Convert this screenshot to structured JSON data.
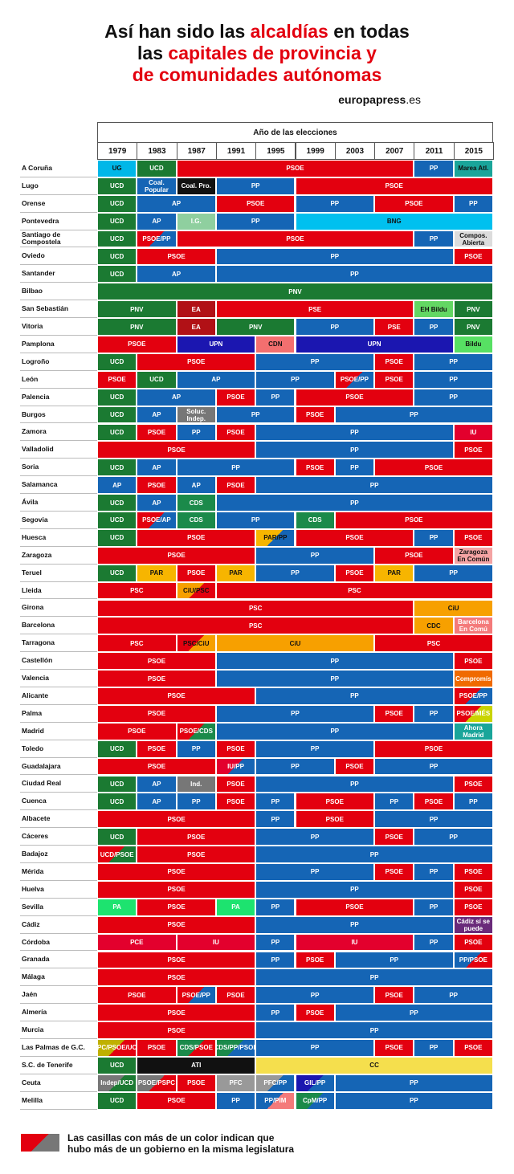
{
  "title": {
    "line1_a": "Así han sido las ",
    "line1_b": "alcaldías",
    "line1_c": " en todas",
    "line2_a": "las ",
    "line2_b": "capitales de provincia y",
    "line3": "de comunidades autónomas"
  },
  "brand": {
    "bold": "europapress",
    "thin": ".es"
  },
  "header": {
    "label": "Año de las elecciones",
    "years": [
      "1979",
      "1983",
      "1987",
      "1991",
      "1995",
      "1999",
      "2003",
      "2007",
      "2011",
      "2015"
    ]
  },
  "legend": {
    "line1": "Las casillas con más de un color indican que",
    "line2": "hubo más de un gobierno en la misma legislatura"
  },
  "colors": {
    "UCD": "#1b7a32",
    "PSOE": "#e3000f",
    "PP": "#1565b5",
    "UG": "#00b7e8",
    "Marea Atl.": "#1aa59a",
    "Coal. Popular": "#1565b5",
    "Coal. Pro.": "#111111",
    "AP": "#1565b5",
    "I.G.": "#8fcf9f",
    "BNG": "#00c0ef",
    "PSOE/PP": "#e3000f",
    "Compos. Abierta": "#dcdcdc",
    "PNV": "#1b7a32",
    "EA": "#b11116",
    "PSE": "#e3000f",
    "EH Bildu": "#63d763",
    "Bildu": "#57e063",
    "UPN": "#1b16b0",
    "CDN": "#f36f6f",
    "Soluc. Indep.": "#777777",
    "IU": "#e3002d",
    "PSOE/AP": "#e3000f",
    "CDS": "#1b8a4a",
    "PAR/PP": "#f7b500",
    "PAR": "#f7b500",
    "Zaragoza En Común": "#f4a3a3",
    "PSC": "#e3000f",
    "CiU/PSC": "#f7a000",
    "CiU": "#f7a000",
    "CDC": "#f7a000",
    "Barcelona En Comú": "#f47a7a",
    "PSC/CiU": "#e3000f",
    "Compromís": "#f06a00",
    "PSOE/MÉS": "#e3000f",
    "PSOE/CDS": "#e3000f",
    "Ahora Madrid": "#1aa59a",
    "IU/PP": "#e3002d",
    "Ind.": "#777777",
    "UCD/PSOE": "#e3000f",
    "PA": "#1de36f",
    "Cádiz sí se puede": "#6a2a7a",
    "PCE": "#e3002d",
    "PP/PSOE": "#1565b5",
    "UPC/PSOE/UCD": "#c0b000",
    "CDS/PSOE": "#1b8a4a",
    "CDS/PP/PSOE": "#1b8a4a",
    "ATI": "#111111",
    "CC": "#f5df4d",
    "Indep/UCD": "#777777",
    "PSOE/PSPC": "#777777",
    "PFC": "#999999",
    "PFC/PP": "#999999",
    "GIL/PP": "#1b16b0",
    "PP/PIM": "#1565b5",
    "CpM/PP": "#1b8a4a"
  },
  "rows": [
    {
      "city": "A Coruña",
      "cells": [
        [
          "UG",
          1
        ],
        [
          "UCD",
          1
        ],
        [
          "PSOE",
          6
        ],
        [
          "PP",
          1
        ],
        [
          "Marea Atl.",
          1
        ]
      ]
    },
    {
      "city": "Lugo",
      "cells": [
        [
          "UCD",
          1
        ],
        [
          "Coal. Popular",
          1
        ],
        [
          "Coal. Pro.",
          1
        ],
        [
          "PP",
          2
        ],
        [
          "PSOE",
          5
        ]
      ]
    },
    {
      "city": "Orense",
      "cells": [
        [
          "UCD",
          1
        ],
        [
          "AP",
          2
        ],
        [
          "PSOE",
          2
        ],
        [
          "PP",
          2
        ],
        [
          "PSOE",
          2
        ],
        [
          "PP",
          1
        ]
      ]
    },
    {
      "city": "Pontevedra",
      "cells": [
        [
          "UCD",
          1
        ],
        [
          "AP",
          1
        ],
        [
          "I.G.",
          1
        ],
        [
          "PP",
          2
        ],
        [
          "BNG",
          5
        ]
      ]
    },
    {
      "city": "Santiago de Compostela",
      "cells": [
        [
          "UCD",
          1
        ],
        [
          "PSOE/PP",
          1
        ],
        [
          "PSOE",
          6
        ],
        [
          "PP",
          1
        ],
        [
          "Compos. Abierta",
          1
        ]
      ]
    },
    {
      "city": "Oviedo",
      "cells": [
        [
          "UCD",
          1
        ],
        [
          "PSOE",
          2
        ],
        [
          "PP",
          6
        ],
        [
          "PSOE",
          1
        ]
      ]
    },
    {
      "city": "Santander",
      "cells": [
        [
          "UCD",
          1
        ],
        [
          "AP",
          2
        ],
        [
          "PP",
          7
        ]
      ]
    },
    {
      "city": "Bilbao",
      "cells": [
        [
          "PNV",
          10
        ]
      ]
    },
    {
      "city": "San Sebastián",
      "cells": [
        [
          "PNV",
          2
        ],
        [
          "EA",
          1
        ],
        [
          "PSE",
          5
        ],
        [
          "EH Bildu",
          1
        ],
        [
          "PNV",
          1
        ]
      ]
    },
    {
      "city": "Vitoria",
      "cells": [
        [
          "PNV",
          2
        ],
        [
          "EA",
          1
        ],
        [
          "PNV",
          2
        ],
        [
          "PP",
          2
        ],
        [
          "PSE",
          1
        ],
        [
          "PP",
          1
        ],
        [
          "PNV",
          1
        ]
      ]
    },
    {
      "city": "Pamplona",
      "cells": [
        [
          "PSOE",
          2
        ],
        [
          "UPN",
          2
        ],
        [
          "CDN",
          1
        ],
        [
          "UPN",
          4
        ],
        [
          "Bildu",
          1
        ]
      ]
    },
    {
      "city": "Logroño",
      "cells": [
        [
          "UCD",
          1
        ],
        [
          "PSOE",
          3
        ],
        [
          "PP",
          3
        ],
        [
          "PSOE",
          1
        ],
        [
          "PP",
          2
        ]
      ]
    },
    {
      "city": "León",
      "cells": [
        [
          "PSOE",
          1
        ],
        [
          "UCD",
          1
        ],
        [
          "AP",
          2
        ],
        [
          "PP",
          2
        ],
        [
          "PSOE/PP",
          1
        ],
        [
          "PSOE",
          1
        ],
        [
          "PP",
          2
        ]
      ]
    },
    {
      "city": "Palencia",
      "cells": [
        [
          "UCD",
          1
        ],
        [
          "AP",
          2
        ],
        [
          "PSOE",
          1
        ],
        [
          "PP",
          1
        ],
        [
          "PSOE",
          3
        ],
        [
          "PP",
          2
        ]
      ]
    },
    {
      "city": "Burgos",
      "cells": [
        [
          "UCD",
          1
        ],
        [
          "AP",
          1
        ],
        [
          "Soluc. Indep.",
          1
        ],
        [
          "PP",
          2
        ],
        [
          "PSOE",
          1
        ],
        [
          "PP",
          4
        ]
      ]
    },
    {
      "city": "Zamora",
      "cells": [
        [
          "UCD",
          1
        ],
        [
          "PSOE",
          1
        ],
        [
          "PP",
          1
        ],
        [
          "PSOE",
          1
        ],
        [
          "PP",
          5
        ],
        [
          "IU",
          1
        ]
      ]
    },
    {
      "city": "Valladolid",
      "cells": [
        [
          "PSOE",
          4
        ],
        [
          "PP",
          5
        ],
        [
          "PSOE",
          1
        ]
      ]
    },
    {
      "city": "Soria",
      "cells": [
        [
          "UCD",
          1
        ],
        [
          "AP",
          1
        ],
        [
          "PP",
          3
        ],
        [
          "PSOE",
          1
        ],
        [
          "PP",
          1
        ],
        [
          "PSOE",
          3
        ]
      ]
    },
    {
      "city": "Salamanca",
      "cells": [
        [
          "AP",
          1
        ],
        [
          "PSOE",
          1
        ],
        [
          "AP",
          1
        ],
        [
          "PSOE",
          1
        ],
        [
          "PP",
          6
        ]
      ]
    },
    {
      "city": "Ávila",
      "cells": [
        [
          "UCD",
          1
        ],
        [
          "AP",
          1
        ],
        [
          "CDS",
          1
        ],
        [
          "PP",
          7
        ]
      ]
    },
    {
      "city": "Segovia",
      "cells": [
        [
          "UCD",
          1
        ],
        [
          "PSOE/AP",
          1
        ],
        [
          "CDS",
          1
        ],
        [
          "PP",
          2
        ],
        [
          "CDS",
          1
        ],
        [
          "PSOE",
          4
        ]
      ]
    },
    {
      "city": "Huesca",
      "cells": [
        [
          "UCD",
          1
        ],
        [
          "PSOE",
          3
        ],
        [
          "PAR/PP",
          1
        ],
        [
          "PSOE",
          3
        ],
        [
          "PP",
          1
        ],
        [
          "PSOE",
          1
        ]
      ]
    },
    {
      "city": "Zaragoza",
      "cells": [
        [
          "PSOE",
          4
        ],
        [
          "PP",
          3
        ],
        [
          "PSOE",
          2
        ],
        [
          "Zaragoza En Común",
          1
        ]
      ]
    },
    {
      "city": "Teruel",
      "cells": [
        [
          "UCD",
          1
        ],
        [
          "PAR",
          1
        ],
        [
          "PSOE",
          1
        ],
        [
          "PAR",
          1
        ],
        [
          "PP",
          2
        ],
        [
          "PSOE",
          1
        ],
        [
          "PAR",
          1
        ],
        [
          "PP",
          2
        ]
      ]
    },
    {
      "city": "Lleida",
      "cells": [
        [
          "PSC",
          2
        ],
        [
          "CiU/PSC",
          1
        ],
        [
          "PSC",
          7
        ]
      ]
    },
    {
      "city": "Girona",
      "cells": [
        [
          "PSC",
          8
        ],
        [
          "CiU",
          2
        ]
      ]
    },
    {
      "city": "Barcelona",
      "cells": [
        [
          "PSC",
          8
        ],
        [
          "CDC",
          1
        ],
        [
          "Barcelona En Comú",
          1
        ]
      ]
    },
    {
      "city": "Tarragona",
      "cells": [
        [
          "PSC",
          2
        ],
        [
          "PSC/CiU",
          1
        ],
        [
          "CiU",
          4
        ],
        [
          "PSC",
          3
        ]
      ]
    },
    {
      "city": "Castellón",
      "cells": [
        [
          "PSOE",
          3
        ],
        [
          "PP",
          6
        ],
        [
          "PSOE",
          1
        ]
      ]
    },
    {
      "city": "Valencia",
      "cells": [
        [
          "PSOE",
          3
        ],
        [
          "PP",
          6
        ],
        [
          "Compromís",
          1
        ]
      ]
    },
    {
      "city": "Alicante",
      "cells": [
        [
          "PSOE",
          4
        ],
        [
          "PP",
          5
        ],
        [
          "PSOE/PP",
          1
        ]
      ]
    },
    {
      "city": "Palma",
      "cells": [
        [
          "PSOE",
          3
        ],
        [
          "PP",
          4
        ],
        [
          "PSOE",
          1
        ],
        [
          "PP",
          1
        ],
        [
          "PSOE/MÉS",
          1
        ]
      ]
    },
    {
      "city": "Madrid",
      "cells": [
        [
          "PSOE",
          2
        ],
        [
          "PSOE/CDS",
          1
        ],
        [
          "PP",
          6
        ],
        [
          "Ahora Madrid",
          1
        ]
      ]
    },
    {
      "city": "Toledo",
      "cells": [
        [
          "UCD",
          1
        ],
        [
          "PSOE",
          1
        ],
        [
          "PP",
          1
        ],
        [
          "PSOE",
          1
        ],
        [
          "PP",
          3
        ],
        [
          "PSOE",
          3
        ]
      ]
    },
    {
      "city": "Guadalajara",
      "cells": [
        [
          "PSOE",
          3
        ],
        [
          "IU/PP",
          1
        ],
        [
          "PP",
          2
        ],
        [
          "PSOE",
          1
        ],
        [
          "PP",
          3
        ]
      ]
    },
    {
      "city": "Ciudad Real",
      "cells": [
        [
          "UCD",
          1
        ],
        [
          "AP",
          1
        ],
        [
          "Ind.",
          1
        ],
        [
          "PSOE",
          1
        ],
        [
          "PP",
          5
        ],
        [
          "PSOE",
          1
        ]
      ]
    },
    {
      "city": "Cuenca",
      "cells": [
        [
          "UCD",
          1
        ],
        [
          "AP",
          1
        ],
        [
          "PP",
          1
        ],
        [
          "PSOE",
          1
        ],
        [
          "PP",
          1
        ],
        [
          "PSOE",
          2
        ],
        [
          "PP",
          1
        ],
        [
          "PSOE",
          1
        ],
        [
          "PP",
          1
        ]
      ]
    },
    {
      "city": "Albacete",
      "cells": [
        [
          "PSOE",
          4
        ],
        [
          "PP",
          1
        ],
        [
          "PSOE",
          2
        ],
        [
          "PP",
          3
        ]
      ]
    },
    {
      "city": "Cáceres",
      "cells": [
        [
          "UCD",
          1
        ],
        [
          "PSOE",
          3
        ],
        [
          "PP",
          3
        ],
        [
          "PSOE",
          1
        ],
        [
          "PP",
          2
        ]
      ]
    },
    {
      "city": "Badajoz",
      "cells": [
        [
          "UCD/PSOE",
          1
        ],
        [
          "PSOE",
          3
        ],
        [
          "PP",
          6
        ]
      ]
    },
    {
      "city": "Mérida",
      "cells": [
        [
          "PSOE",
          4
        ],
        [
          "PP",
          3
        ],
        [
          "PSOE",
          1
        ],
        [
          "PP",
          1
        ],
        [
          "PSOE",
          1
        ]
      ]
    },
    {
      "city": "Huelva",
      "cells": [
        [
          "PSOE",
          4
        ],
        [
          "PP",
          5
        ],
        [
          "PSOE",
          1
        ]
      ]
    },
    {
      "city": "Sevilla",
      "cells": [
        [
          "PA",
          1
        ],
        [
          "PSOE",
          2
        ],
        [
          "PA",
          1
        ],
        [
          "PP",
          1
        ],
        [
          "PSOE",
          3
        ],
        [
          "PP",
          1
        ],
        [
          "PSOE",
          1
        ]
      ]
    },
    {
      "city": "Cádiz",
      "cells": [
        [
          "PSOE",
          4
        ],
        [
          "PP",
          5
        ],
        [
          "Cádiz sí se puede",
          1
        ]
      ]
    },
    {
      "city": "Córdoba",
      "cells": [
        [
          "PCE",
          2
        ],
        [
          "IU",
          2
        ],
        [
          "PP",
          1
        ],
        [
          "IU",
          3
        ],
        [
          "PP",
          1
        ],
        [
          "PSOE",
          1
        ]
      ]
    },
    {
      "city": "Granada",
      "cells": [
        [
          "PSOE",
          4
        ],
        [
          "PP",
          1
        ],
        [
          "PSOE",
          1
        ],
        [
          "PP",
          3
        ],
        [
          "PP/PSOE",
          1
        ]
      ]
    },
    {
      "city": "Málaga",
      "cells": [
        [
          "PSOE",
          4
        ],
        [
          "PP",
          6
        ]
      ]
    },
    {
      "city": "Jaén",
      "cells": [
        [
          "PSOE",
          2
        ],
        [
          "PSOE/PP",
          1
        ],
        [
          "PSOE",
          1
        ],
        [
          "PP",
          3
        ],
        [
          "PSOE",
          1
        ],
        [
          "PP",
          2
        ]
      ]
    },
    {
      "city": "Almería",
      "cells": [
        [
          "PSOE",
          4
        ],
        [
          "PP",
          1
        ],
        [
          "PSOE",
          1
        ],
        [
          "PP",
          4
        ]
      ]
    },
    {
      "city": "Murcia",
      "cells": [
        [
          "PSOE",
          4
        ],
        [
          "PP",
          6
        ]
      ]
    },
    {
      "city": "Las Palmas de G.C.",
      "cells": [
        [
          "UPC/PSOE/UCD",
          1
        ],
        [
          "PSOE",
          1
        ],
        [
          "CDS/PSOE",
          1
        ],
        [
          "CDS/PP/PSOE",
          1
        ],
        [
          "PP",
          3
        ],
        [
          "PSOE",
          1
        ],
        [
          "PP",
          1
        ],
        [
          "PSOE",
          1
        ]
      ]
    },
    {
      "city": "S.C. de Tenerife",
      "cells": [
        [
          "UCD",
          1
        ],
        [
          "ATI",
          3
        ],
        [
          "CC",
          6
        ]
      ]
    },
    {
      "city": "Ceuta",
      "cells": [
        [
          "Indep/UCD",
          1
        ],
        [
          "PSOE/PSPC",
          1
        ],
        [
          "PSOE",
          1
        ],
        [
          "PFC",
          1
        ],
        [
          "PFC/PP",
          1
        ],
        [
          "GIL/PP",
          1
        ],
        [
          "PP",
          4
        ]
      ]
    },
    {
      "city": "Melilla",
      "cells": [
        [
          "UCD",
          1
        ],
        [
          "PSOE",
          2
        ],
        [
          "PP",
          1
        ],
        [
          "PP/PIM",
          1
        ],
        [
          "CpM/PP",
          1
        ],
        [
          "PP",
          4
        ]
      ]
    }
  ],
  "second_colors": {
    "PSOE/PP": "#1565b5",
    "PSOE/AP": "#1565b5",
    "PAR/PP": "#1565b5",
    "CiU/PSC": "#e3000f",
    "PSC/CiU": "#f7a000",
    "PSOE/MÉS": "#c9d400",
    "PSOE/CDS": "#1b8a4a",
    "IU/PP": "#1565b5",
    "UCD/PSOE": "#1b7a32",
    "PP/PSOE": "#e3000f",
    "UPC/PSOE/UCD": "#e3000f",
    "CDS/PSOE": "#e3000f",
    "CDS/PP/PSOE": "#1565b5",
    "Indep/UCD": "#1b7a32",
    "PSOE/PSPC": "#e3000f",
    "PFC/PP": "#1565b5",
    "GIL/PP": "#1565b5",
    "PP/PIM": "#f47a7a",
    "CpM/PP": "#1565b5"
  },
  "light_text": [
    "UG",
    "I.G.",
    "EH Bildu",
    "Bildu",
    "Compos. Abierta",
    "CDN",
    "PAR/PP",
    "PAR",
    "Zaragoza En Común",
    "CiU/PSC",
    "CiU",
    "CDC",
    "PSC/CiU",
    "CC",
    "BNG",
    "Marea Atl."
  ],
  "dark_text_colors": {
    "Compos. Abierta": "#111",
    "Zaragoza En Común": "#111",
    "CC": "#111",
    "BNG": "#111",
    "I.G.": "#fff",
    "UG": "#111",
    "Marea Atl.": "#111"
  }
}
